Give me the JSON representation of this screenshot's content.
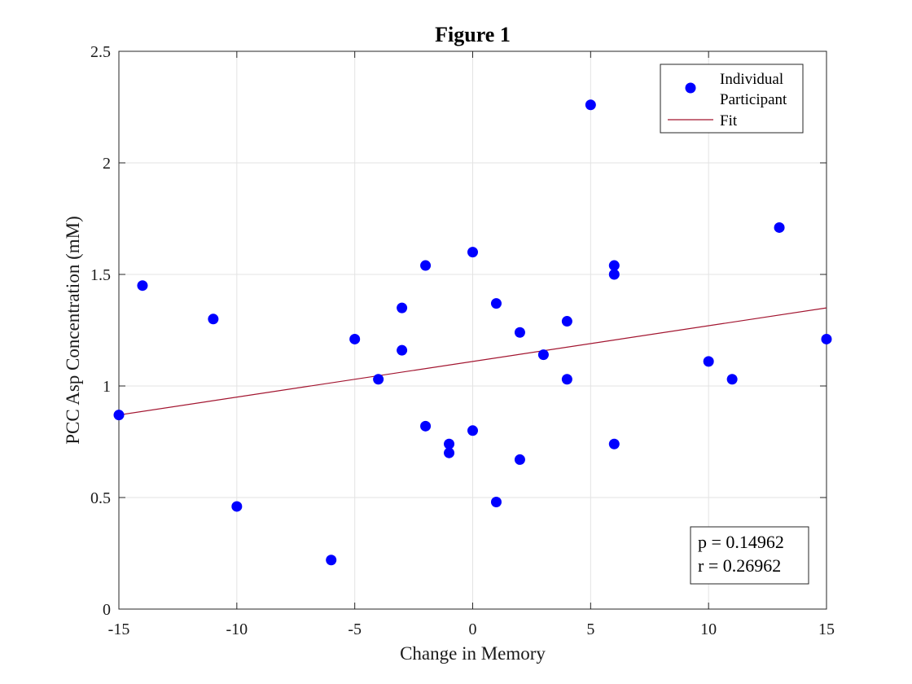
{
  "chart_data": {
    "type": "scatter",
    "title": "Figure 1",
    "xlabel": "Change in Memory",
    "ylabel": "PCC Asp Concentration (mM)",
    "xlim": [
      -15,
      15
    ],
    "ylim": [
      0,
      2.5
    ],
    "xticks": [
      -15,
      -10,
      -5,
      0,
      5,
      10,
      15
    ],
    "yticks": [
      0,
      0.5,
      1,
      1.5,
      2,
      2.5
    ],
    "xtick_labels": [
      "-15",
      "-10",
      "-5",
      "0",
      "5",
      "10",
      "15"
    ],
    "ytick_labels": [
      "0",
      "0.5",
      "1",
      "1.5",
      "2",
      "2.5"
    ],
    "grid": true,
    "legend_position": "top-right",
    "series": [
      {
        "name": "Individual Participant",
        "legend_lines": [
          "Individual",
          "Participant"
        ],
        "kind": "scatter",
        "color": "#0000ff",
        "points": [
          [
            -15,
            0.87
          ],
          [
            -14,
            1.45
          ],
          [
            -11,
            1.3
          ],
          [
            -10,
            0.46
          ],
          [
            -6,
            0.22
          ],
          [
            -5,
            1.21
          ],
          [
            -4,
            1.03
          ],
          [
            -3,
            1.35
          ],
          [
            -3,
            1.16
          ],
          [
            -2,
            1.54
          ],
          [
            -2,
            0.82
          ],
          [
            -1,
            0.74
          ],
          [
            -1,
            0.7
          ],
          [
            0,
            1.6
          ],
          [
            0,
            0.8
          ],
          [
            1,
            1.37
          ],
          [
            1,
            0.48
          ],
          [
            2,
            1.24
          ],
          [
            2,
            0.67
          ],
          [
            3,
            1.14
          ],
          [
            4,
            1.29
          ],
          [
            4,
            1.03
          ],
          [
            5,
            2.26
          ],
          [
            6,
            1.54
          ],
          [
            6,
            1.5
          ],
          [
            6,
            0.74
          ],
          [
            10,
            1.11
          ],
          [
            11,
            1.03
          ],
          [
            13,
            1.71
          ],
          [
            15,
            1.21
          ]
        ]
      },
      {
        "name": "Fit",
        "legend_lines": [
          "Fit"
        ],
        "kind": "line",
        "color": "#a2142f",
        "points": [
          [
            -15,
            0.87
          ],
          [
            15,
            1.35
          ]
        ]
      }
    ],
    "annotation": {
      "lines": [
        "p = 0.14962",
        "r = 0.26962"
      ],
      "position": "bottom-right"
    }
  }
}
